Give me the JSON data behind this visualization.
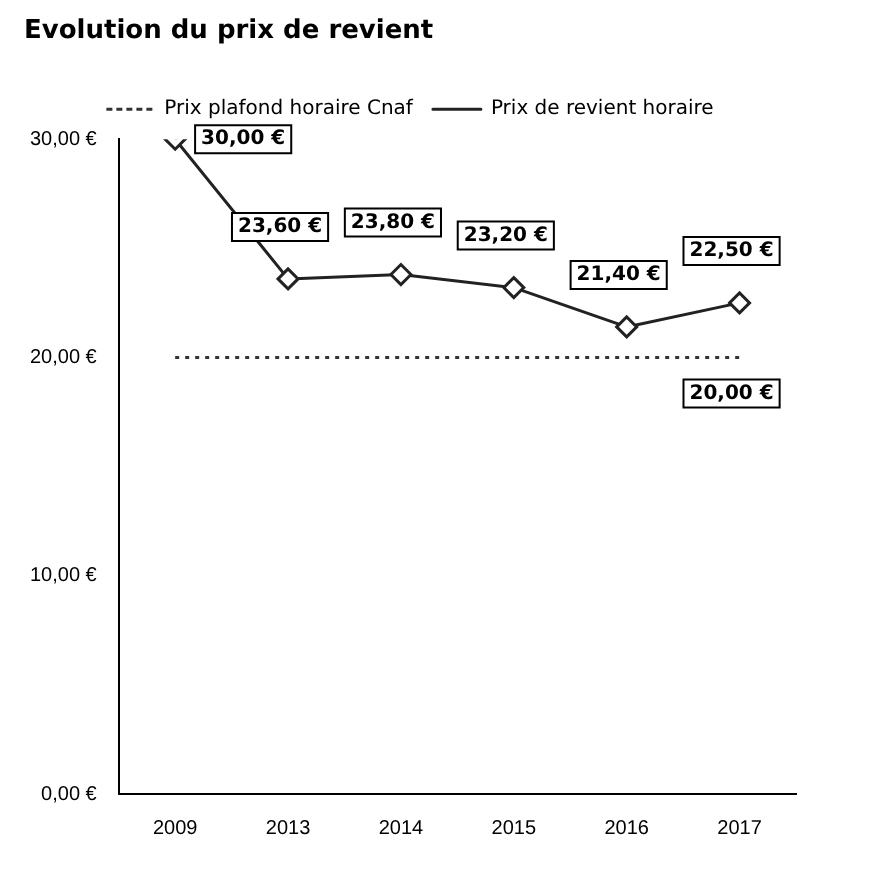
{
  "chart_data": {
    "type": "line",
    "title": "Evolution du prix de revient",
    "categories": [
      "2009",
      "2013",
      "2014",
      "2015",
      "2016",
      "2017"
    ],
    "series": [
      {
        "name": "Prix plafond horaire Cnaf",
        "color": "#333333",
        "line_style": "dotted",
        "marker": "none",
        "values": [
          20.0,
          20.0,
          20.0,
          20.0,
          20.0,
          20.0
        ],
        "value_labels": [
          null,
          null,
          null,
          null,
          null,
          "20,00 €"
        ]
      },
      {
        "name": "Prix de revient horaire",
        "color": "#222222",
        "line_style": "solid",
        "marker": "diamond",
        "values": [
          30.0,
          23.6,
          23.8,
          23.2,
          21.4,
          22.5
        ],
        "value_labels": [
          "30,00 €",
          "23,60 €",
          "23,80 €",
          "23,20 €",
          "21,40 €",
          "22,50 €"
        ]
      }
    ],
    "ylim": [
      0,
      30
    ],
    "yticks": [
      {
        "value": 0,
        "label": "0,00 €"
      },
      {
        "value": 10,
        "label": "10,00 €"
      },
      {
        "value": 20,
        "label": "20,00 €"
      },
      {
        "value": 30,
        "label": "30,00 €"
      }
    ],
    "grid": false,
    "legend": "top"
  }
}
